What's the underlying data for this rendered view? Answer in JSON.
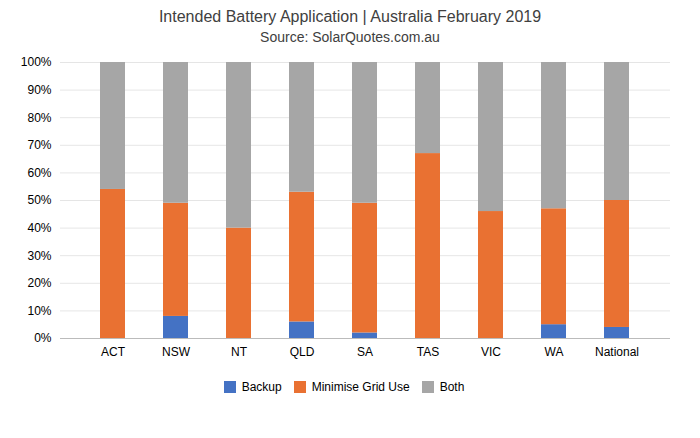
{
  "chart_data": {
    "type": "bar",
    "stacked": true,
    "title": "Intended Battery Application | Australia February 2019",
    "subtitle": "Source: SolarQuotes.com.au",
    "categories": [
      "ACT",
      "NSW",
      "NT",
      "QLD",
      "SA",
      "TAS",
      "VIC",
      "WA",
      "National"
    ],
    "series": [
      {
        "name": "Backup",
        "color": "#4472c4",
        "values": [
          0,
          8,
          0,
          6,
          2,
          0,
          0,
          5,
          4
        ]
      },
      {
        "name": "Minimise Grid Use",
        "color": "#e97132",
        "values": [
          54,
          41,
          40,
          47,
          47,
          67,
          46,
          42,
          46
        ]
      },
      {
        "name": "Both",
        "color": "#a6a6a6",
        "values": [
          46,
          51,
          60,
          47,
          51,
          33,
          54,
          53,
          50
        ]
      }
    ],
    "ylim": [
      0,
      100
    ],
    "yticks": [
      {
        "value": 0,
        "label": "0%"
      },
      {
        "value": 10,
        "label": "10%"
      },
      {
        "value": 20,
        "label": "20%"
      },
      {
        "value": 30,
        "label": "30%"
      },
      {
        "value": 40,
        "label": "40%"
      },
      {
        "value": 50,
        "label": "50%"
      },
      {
        "value": 60,
        "label": "60%"
      },
      {
        "value": 70,
        "label": "70%"
      },
      {
        "value": 80,
        "label": "80%"
      },
      {
        "value": 90,
        "label": "90%"
      },
      {
        "value": 100,
        "label": "100%"
      }
    ],
    "grid": true,
    "legend": "bottom"
  }
}
